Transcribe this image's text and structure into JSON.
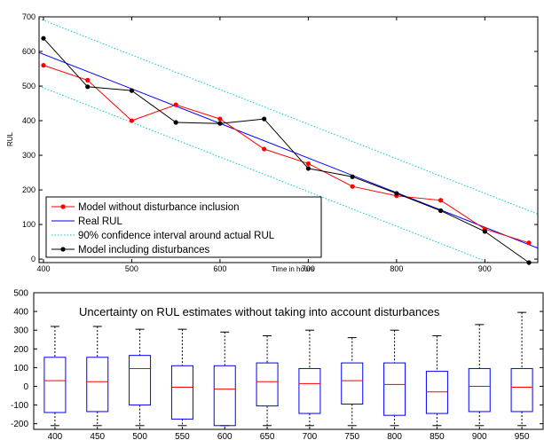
{
  "chart_data": [
    {
      "type": "line",
      "xlabel": "Time in hours",
      "ylabel": "RUL",
      "xlim": [
        395,
        960
      ],
      "ylim": [
        -10,
        700
      ],
      "xticks": [
        "400",
        "500",
        "600",
        "700",
        "800",
        "900"
      ],
      "yticks": [
        "0",
        "100",
        "200",
        "300",
        "400",
        "500",
        "600",
        "700"
      ],
      "grid": false,
      "legend_position": "bottom-left",
      "series": [
        {
          "name": "Model without disturbance inclusion",
          "color": "#ff0000",
          "marker": "circle",
          "x": [
            400,
            450,
            500,
            550,
            600,
            650,
            700,
            750,
            800,
            850,
            900,
            950
          ],
          "y": [
            560,
            517,
            400,
            446,
            405,
            318,
            276,
            210,
            183,
            170,
            87,
            47
          ]
        },
        {
          "name": "Real RUL",
          "color": "#0000ff",
          "marker": "none",
          "x": [
            395,
            960
          ],
          "y": [
            597,
            32
          ]
        },
        {
          "name": "90% confidence interval around actual RUL",
          "color": "#00c8d2",
          "style": "dotted",
          "x": [
            395,
            960
          ],
          "y": [
            695,
            130
          ],
          "lower": {
            "x": [
              395,
              910
            ],
            "y": [
              500,
              -15
            ]
          }
        },
        {
          "name": "Model including disturbances",
          "color": "#000000",
          "marker": "circle",
          "x": [
            400,
            450,
            500,
            550,
            600,
            650,
            700,
            750,
            800,
            850,
            900,
            950
          ],
          "y": [
            638,
            498,
            487,
            395,
            392,
            405,
            262,
            238,
            190,
            140,
            80,
            -10
          ]
        }
      ]
    },
    {
      "type": "box",
      "annotation": "Uncertainty on RUL estimates without taking into account disturbances",
      "ylim": [
        -230,
        500
      ],
      "yticks": [
        "-200",
        "-100",
        "0",
        "100",
        "200",
        "300",
        "400",
        "500"
      ],
      "categories": [
        "400",
        "450",
        "500",
        "550",
        "600",
        "650",
        "700",
        "750",
        "800",
        "850",
        "900",
        "950"
      ],
      "box_color": "#0000ff",
      "median_color": "#ff0000",
      "whisker_color": "#000000",
      "boxes": [
        {
          "min": -210,
          "q1": -140,
          "median": 30,
          "q3": 155,
          "max": 320
        },
        {
          "min": -210,
          "q1": -135,
          "median": 25,
          "q3": 155,
          "max": 320
        },
        {
          "min": -210,
          "q1": -100,
          "median": 95,
          "q3": 165,
          "max": 305
        },
        {
          "min": -210,
          "q1": -175,
          "median": -5,
          "q3": 110,
          "max": 305
        },
        {
          "min": -210,
          "q1": -210,
          "median": -15,
          "q3": 110,
          "max": 290
        },
        {
          "min": -210,
          "q1": -105,
          "median": 25,
          "q3": 125,
          "max": 270
        },
        {
          "min": -210,
          "q1": -145,
          "median": 15,
          "q3": 95,
          "max": 300
        },
        {
          "min": -210,
          "q1": -95,
          "median": 30,
          "q3": 125,
          "max": 260
        },
        {
          "min": -210,
          "q1": -155,
          "median": 10,
          "q3": 125,
          "max": 300
        },
        {
          "min": -210,
          "q1": -145,
          "median": -30,
          "q3": 80,
          "max": 270
        },
        {
          "min": -210,
          "q1": -135,
          "median": 0,
          "q3": 95,
          "max": 330
        },
        {
          "min": -210,
          "q1": -135,
          "median": -5,
          "q3": 95,
          "max": 395
        }
      ]
    }
  ]
}
